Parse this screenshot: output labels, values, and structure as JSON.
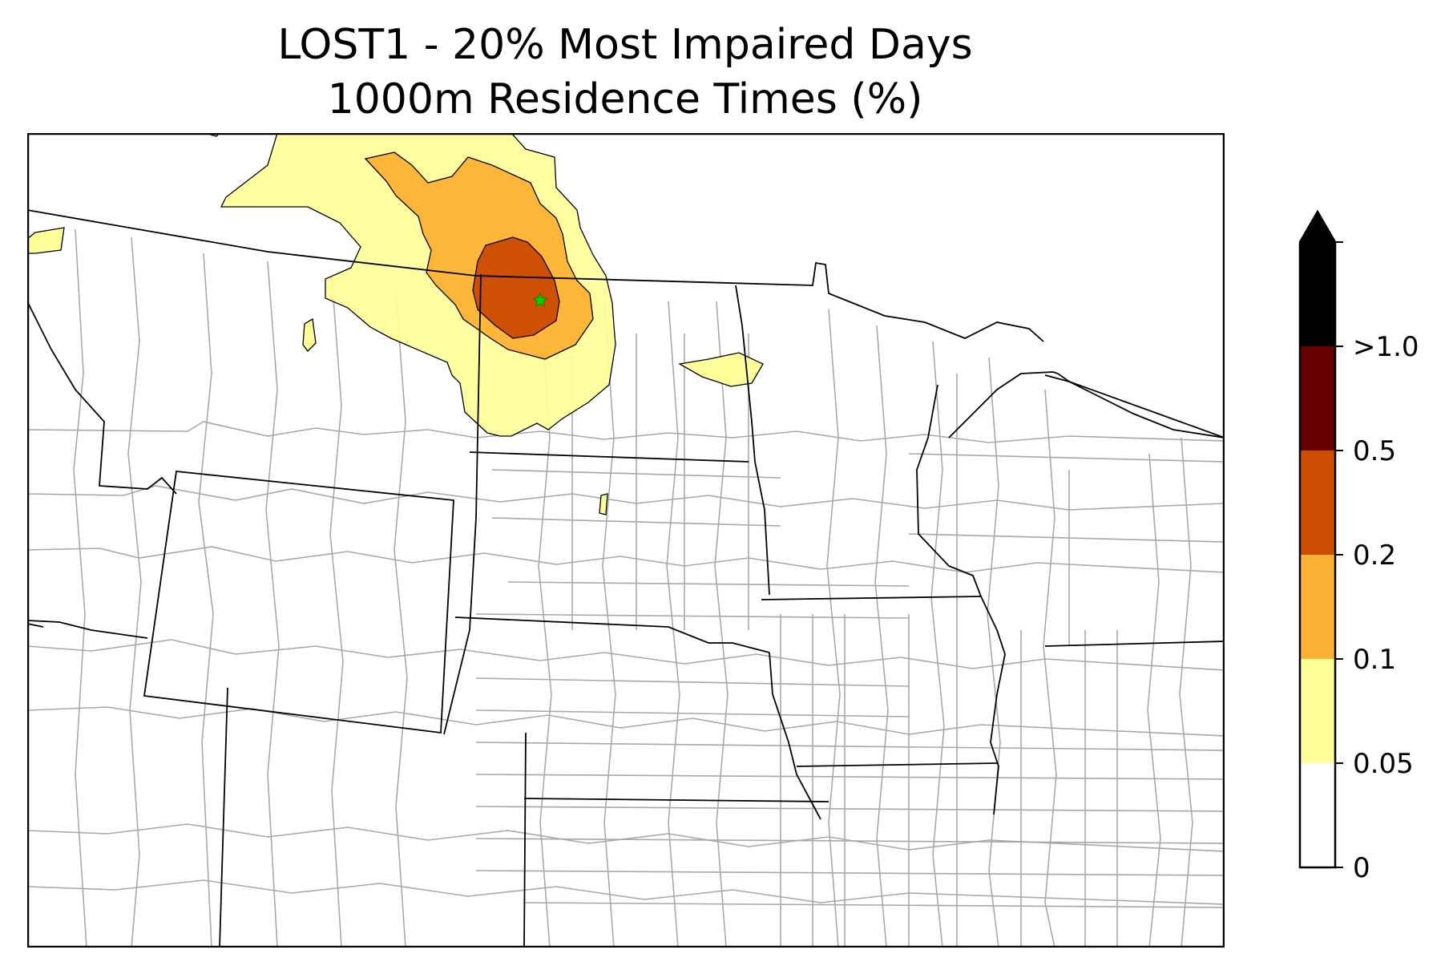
{
  "title": {
    "line1": "LOST1 - 20% Most Impaired Days",
    "line2": "1000m Residence Times (%)"
  },
  "map": {
    "site_marker": "green-star-icon",
    "site_color": "#00d000",
    "state_border_color": "#000000",
    "county_border_color": "#a8a8a8"
  },
  "colorbar": {
    "extend": "max",
    "levels": [
      0,
      0.05,
      0.1,
      0.2,
      0.5,
      1.0
    ],
    "tick_labels": [
      "0",
      "0.05",
      "0.1",
      "0.2",
      "0.5",
      ">1.0"
    ],
    "colors": [
      "#ffffff",
      "#ffff99",
      "#feb235",
      "#cc4c02",
      "#660000",
      "#000000"
    ]
  }
}
